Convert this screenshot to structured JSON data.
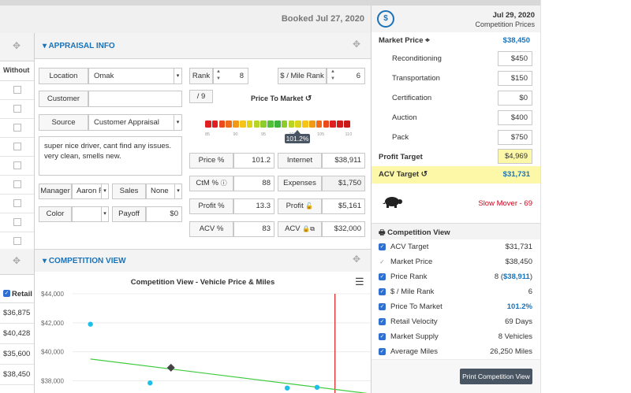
{
  "header": {
    "booked": "Booked Jul 27, 2020"
  },
  "left_column": {
    "without_label": "Without",
    "retail_label": "Retail",
    "retail_values": [
      "$36,875",
      "$40,428",
      "$35,600",
      "$38,450"
    ]
  },
  "appraisal": {
    "title": "APPRAISAL INFO",
    "location": {
      "label": "Location",
      "value": "Omak"
    },
    "customer": {
      "label": "Customer",
      "value": ""
    },
    "source": {
      "label": "Source",
      "value": "Customer Appraisal"
    },
    "notes": "super nice driver, cant find any issues. very clean, smells new.",
    "manager": {
      "label": "Manager",
      "value": "Aaron F"
    },
    "sales": {
      "label": "Sales",
      "value": "None"
    },
    "color": {
      "label": "Color",
      "value": ""
    },
    "payoff": {
      "label": "Payoff",
      "value": "$0"
    },
    "rank": {
      "label": "Rank",
      "value": "8",
      "of": "/ 9"
    },
    "mile_rank": {
      "label": "$ / Mile Rank",
      "value": "6"
    },
    "price_to_market": {
      "label": "Price To Market",
      "value": "101.2%",
      "ticks": [
        "85",
        "90",
        "95",
        "100",
        "105",
        "110"
      ],
      "colors": [
        "#e02020",
        "#e02020",
        "#ea4a1c",
        "#ef6a1a",
        "#f29a18",
        "#f5c416",
        "#dcd41a",
        "#b8d424",
        "#8ccc2c",
        "#52c038",
        "#3cb43c",
        "#8ccc2c",
        "#b8d424",
        "#dcd41a",
        "#f5c416",
        "#f29a18",
        "#ef6a1a",
        "#ea4a1c",
        "#e02020",
        "#d01c1c",
        "#c81818"
      ]
    },
    "metrics_left": [
      {
        "label": "Price %",
        "value": "101.2"
      },
      {
        "label": "CtM %",
        "value": "88"
      },
      {
        "label": "Profit %",
        "value": "13.3"
      },
      {
        "label": "ACV %",
        "value": "83"
      }
    ],
    "metrics_right": [
      {
        "label": "Internet",
        "value": "$38,911"
      },
      {
        "label": "Expenses",
        "value": "$1,750"
      },
      {
        "label": "Profit",
        "value": "$5,161"
      },
      {
        "label": "ACV",
        "value": "$32,000"
      }
    ]
  },
  "competition": {
    "title": "COMPETITION VIEW",
    "chart_title": "Competition View - Vehicle Price & Miles"
  },
  "chart_data": {
    "type": "scatter",
    "title": "Competition View - Vehicle Price & Miles",
    "y_ticks": [
      "$44,000",
      "$42,000",
      "$40,000",
      "$38,000"
    ],
    "ylim": [
      37500,
      44000
    ],
    "points": [
      {
        "x": 0.06,
        "y": 41900
      },
      {
        "x": 0.26,
        "y": 37850
      },
      {
        "x": 0.72,
        "y": 37500
      },
      {
        "x": 0.82,
        "y": 37550
      }
    ],
    "marker_diamond": {
      "x": 0.33,
      "y": 38900
    },
    "trend": [
      {
        "x": 0.06,
        "y": 39500
      },
      {
        "x": 1.0,
        "y": 37100
      }
    ],
    "vline_x": 0.88
  },
  "right_panel": {
    "date": "Jul 29, 2020",
    "subtitle": "Competition Prices",
    "market_price": {
      "label": "Market Price",
      "value": "$38,450"
    },
    "costs": [
      {
        "label": "Reconditioning",
        "value": "$450"
      },
      {
        "label": "Transportation",
        "value": "$150"
      },
      {
        "label": "Certification",
        "value": "$0"
      },
      {
        "label": "Auction",
        "value": "$400"
      },
      {
        "label": "Pack",
        "value": "$750"
      }
    ],
    "profit_target": {
      "label": "Profit Target",
      "value": "$4,969"
    },
    "acv_target": {
      "label": "ACV Target",
      "value": "$31,731"
    },
    "slow_mover": "Slow Mover - 69",
    "competition_view": {
      "title": "Competition View",
      "rows": [
        {
          "label": "ACV Target",
          "value": "$31,731",
          "checked": true
        },
        {
          "label": "Market Price",
          "value": "$38,450",
          "checked": false
        },
        {
          "label": "Price Rank",
          "value": "8 (",
          "value2": "$38,911",
          "value3": ")",
          "checked": true
        },
        {
          "label": "$ / Mile Rank",
          "value": "6",
          "checked": true
        },
        {
          "label": "Price To Market",
          "value": "101.2%",
          "checked": true,
          "blue": true
        },
        {
          "label": "Retail Velocity",
          "value": "69 Days",
          "checked": true
        },
        {
          "label": "Market Supply",
          "value": "8 Vehicles",
          "checked": true
        },
        {
          "label": "Average Miles",
          "value": "26,250 Miles",
          "checked": true
        }
      ]
    },
    "print_button": "Print Competition View"
  },
  "colors": {
    "accent": "#1a73b8",
    "red": "#d0021b",
    "highlight": "#fdf7a8",
    "tooltip": "#4a5563"
  }
}
